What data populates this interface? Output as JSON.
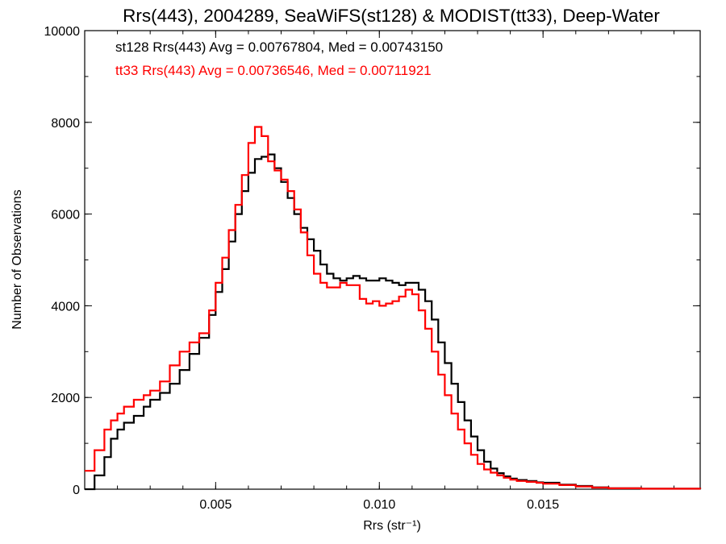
{
  "chart_data": {
    "type": "line",
    "title": "Rrs(443), 2004289, SeaWiFS(st128) & MODIST(tt33), Deep-Water",
    "xlabel": "Rrs (str⁻¹)",
    "ylabel": "Number of Observations",
    "xlim": [
      0.001,
      0.0198
    ],
    "ylim": [
      0,
      10000
    ],
    "x_ticks": [
      0.005,
      0.01,
      0.015
    ],
    "x_tick_labels": [
      "0.005",
      "0.010",
      "0.015"
    ],
    "y_ticks": [
      0,
      2000,
      4000,
      6000,
      8000,
      10000
    ],
    "y_tick_labels": [
      "0",
      "2000",
      "4000",
      "6000",
      "8000",
      "10000"
    ],
    "x_minor_step": 0.001,
    "y_minor_step": 1000,
    "grid": false,
    "annotations": [
      {
        "text": "st128 Rrs(443) Avg = 0.00767804, Med = 0.00743150",
        "color": "#000000"
      },
      {
        "text": "tt33 Rrs(443) Avg = 0.00736546, Med = 0.00711921",
        "color": "#ff0000"
      }
    ],
    "step": true,
    "series": [
      {
        "color": "#000000",
        "points": [
          [
            0.001,
            0
          ],
          [
            0.0013,
            300
          ],
          [
            0.0016,
            700
          ],
          [
            0.0018,
            1100
          ],
          [
            0.002,
            1300
          ],
          [
            0.0022,
            1450
          ],
          [
            0.0025,
            1600
          ],
          [
            0.0028,
            1800
          ],
          [
            0.003,
            1950
          ],
          [
            0.0033,
            2100
          ],
          [
            0.0036,
            2300
          ],
          [
            0.0039,
            2600
          ],
          [
            0.0042,
            2950
          ],
          [
            0.0045,
            3300
          ],
          [
            0.0048,
            3800
          ],
          [
            0.005,
            4300
          ],
          [
            0.0052,
            4800
          ],
          [
            0.0054,
            5400
          ],
          [
            0.0056,
            6000
          ],
          [
            0.0058,
            6500
          ],
          [
            0.006,
            6900
          ],
          [
            0.0062,
            7200
          ],
          [
            0.0064,
            7250
          ],
          [
            0.0066,
            7300
          ],
          [
            0.0068,
            7000
          ],
          [
            0.007,
            6700
          ],
          [
            0.0072,
            6350
          ],
          [
            0.0074,
            6000
          ],
          [
            0.0076,
            5700
          ],
          [
            0.0078,
            5450
          ],
          [
            0.008,
            5200
          ],
          [
            0.0082,
            4900
          ],
          [
            0.0084,
            4700
          ],
          [
            0.0086,
            4600
          ],
          [
            0.0088,
            4550
          ],
          [
            0.009,
            4600
          ],
          [
            0.0092,
            4650
          ],
          [
            0.0094,
            4600
          ],
          [
            0.0096,
            4550
          ],
          [
            0.0098,
            4550
          ],
          [
            0.01,
            4600
          ],
          [
            0.0102,
            4550
          ],
          [
            0.0104,
            4500
          ],
          [
            0.0106,
            4450
          ],
          [
            0.0108,
            4500
          ],
          [
            0.011,
            4500
          ],
          [
            0.0112,
            4350
          ],
          [
            0.0114,
            4100
          ],
          [
            0.0116,
            3700
          ],
          [
            0.0118,
            3200
          ],
          [
            0.012,
            2750
          ],
          [
            0.0122,
            2300
          ],
          [
            0.0124,
            1900
          ],
          [
            0.0126,
            1500
          ],
          [
            0.0128,
            1150
          ],
          [
            0.013,
            850
          ],
          [
            0.0132,
            600
          ],
          [
            0.0134,
            450
          ],
          [
            0.0136,
            350
          ],
          [
            0.0138,
            280
          ],
          [
            0.014,
            230
          ],
          [
            0.0142,
            200
          ],
          [
            0.0145,
            180
          ],
          [
            0.0148,
            150
          ],
          [
            0.015,
            140
          ],
          [
            0.0155,
            100
          ],
          [
            0.016,
            70
          ],
          [
            0.0165,
            40
          ],
          [
            0.017,
            20
          ],
          [
            0.018,
            10
          ],
          [
            0.0198,
            5
          ]
        ]
      },
      {
        "color": "#ff0000",
        "points": [
          [
            0.001,
            400
          ],
          [
            0.0013,
            850
          ],
          [
            0.0016,
            1300
          ],
          [
            0.0018,
            1500
          ],
          [
            0.002,
            1650
          ],
          [
            0.0022,
            1800
          ],
          [
            0.0025,
            1950
          ],
          [
            0.0028,
            2050
          ],
          [
            0.003,
            2150
          ],
          [
            0.0033,
            2350
          ],
          [
            0.0036,
            2700
          ],
          [
            0.0039,
            3000
          ],
          [
            0.0042,
            3200
          ],
          [
            0.0045,
            3400
          ],
          [
            0.0048,
            3900
          ],
          [
            0.005,
            4500
          ],
          [
            0.0052,
            5050
          ],
          [
            0.0054,
            5650
          ],
          [
            0.0056,
            6200
          ],
          [
            0.0058,
            6850
          ],
          [
            0.006,
            7550
          ],
          [
            0.0062,
            7900
          ],
          [
            0.0064,
            7700
          ],
          [
            0.0066,
            7150
          ],
          [
            0.0068,
            6950
          ],
          [
            0.007,
            6750
          ],
          [
            0.0072,
            6500
          ],
          [
            0.0074,
            6100
          ],
          [
            0.0076,
            5600
          ],
          [
            0.0078,
            5100
          ],
          [
            0.008,
            4700
          ],
          [
            0.0082,
            4500
          ],
          [
            0.0084,
            4400
          ],
          [
            0.0086,
            4400
          ],
          [
            0.0088,
            4500
          ],
          [
            0.009,
            4450
          ],
          [
            0.0092,
            4450
          ],
          [
            0.0094,
            4150
          ],
          [
            0.0096,
            4050
          ],
          [
            0.0098,
            4100
          ],
          [
            0.01,
            4000
          ],
          [
            0.0102,
            4050
          ],
          [
            0.0104,
            4100
          ],
          [
            0.0106,
            4200
          ],
          [
            0.0108,
            4350
          ],
          [
            0.011,
            4250
          ],
          [
            0.0112,
            3900
          ],
          [
            0.0114,
            3500
          ],
          [
            0.0116,
            3000
          ],
          [
            0.0118,
            2500
          ],
          [
            0.012,
            2050
          ],
          [
            0.0122,
            1650
          ],
          [
            0.0124,
            1300
          ],
          [
            0.0126,
            1000
          ],
          [
            0.0128,
            750
          ],
          [
            0.013,
            550
          ],
          [
            0.0132,
            430
          ],
          [
            0.0134,
            360
          ],
          [
            0.0136,
            300
          ],
          [
            0.0138,
            250
          ],
          [
            0.014,
            210
          ],
          [
            0.0142,
            180
          ],
          [
            0.0145,
            160
          ],
          [
            0.0148,
            140
          ],
          [
            0.015,
            120
          ],
          [
            0.0155,
            90
          ],
          [
            0.016,
            60
          ],
          [
            0.0165,
            35
          ],
          [
            0.017,
            20
          ],
          [
            0.018,
            10
          ],
          [
            0.0198,
            5
          ]
        ]
      }
    ]
  }
}
